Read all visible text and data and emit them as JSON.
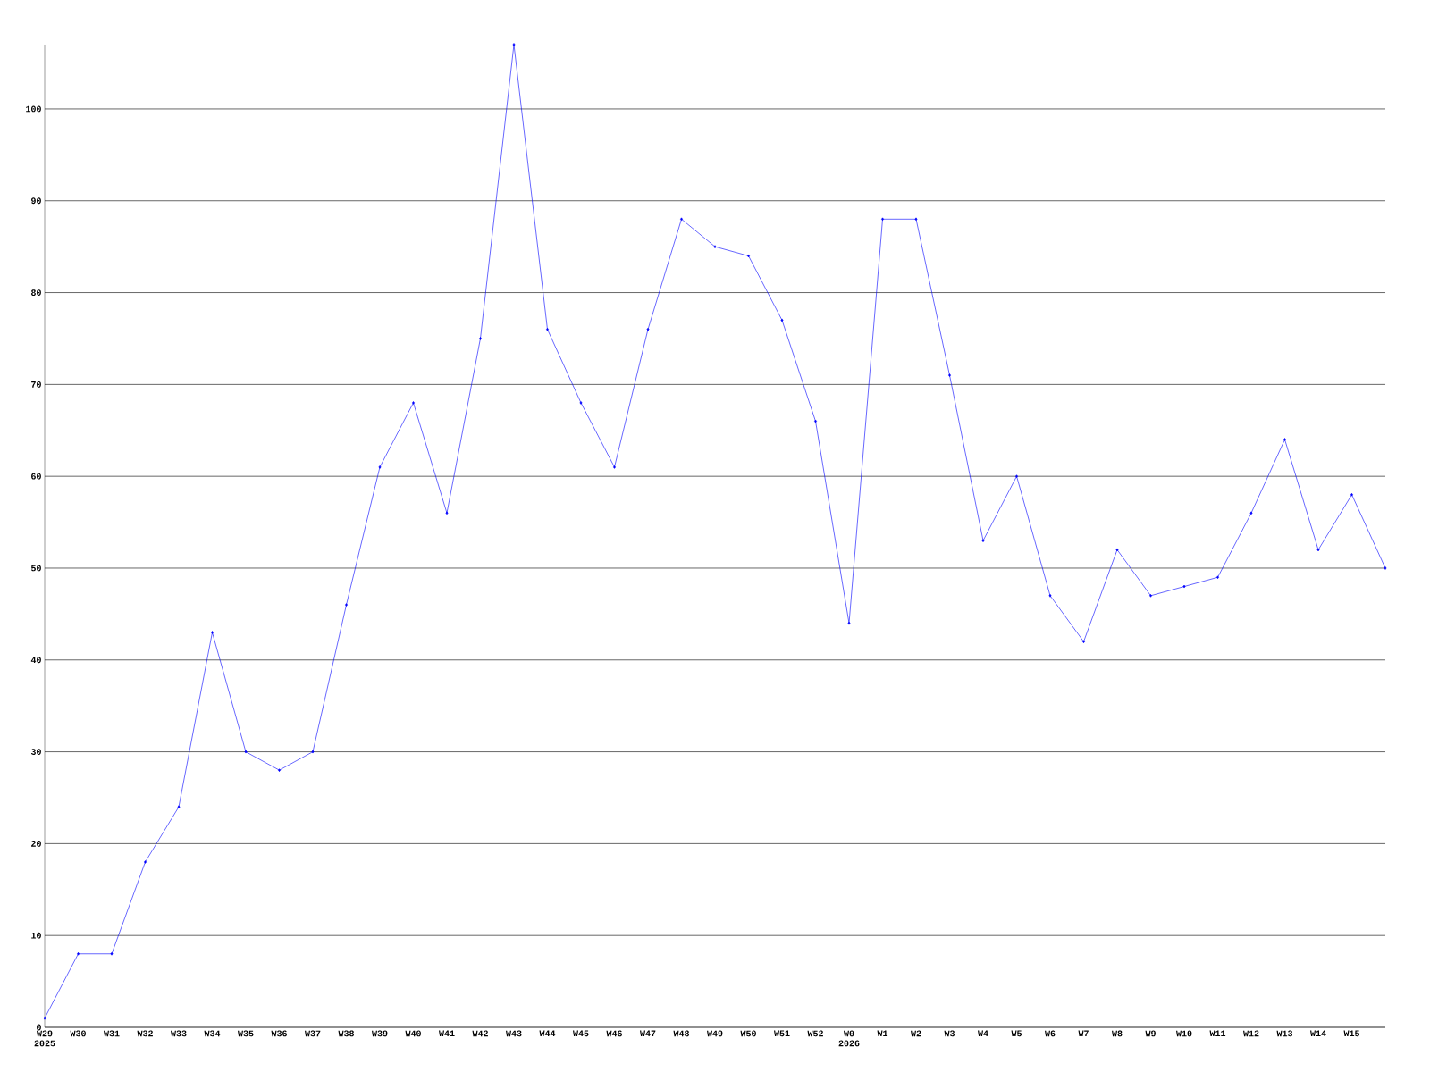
{
  "chart_data": {
    "type": "line",
    "categories": [
      "W29 2025",
      "W30",
      "W31",
      "W32",
      "W33",
      "W34",
      "W35",
      "W36",
      "W37",
      "W38",
      "W39",
      "W40",
      "W41",
      "W42",
      "W43",
      "W44",
      "W45",
      "W46",
      "W47",
      "W48",
      "W49",
      "W50",
      "W51",
      "W52",
      "W0 2026",
      "W1",
      "W2",
      "W3",
      "W4",
      "W5",
      "W6",
      "W7",
      "W8",
      "W9",
      "W10",
      "W11",
      "W12",
      "W13",
      "W14",
      "W15",
      null
    ],
    "series": [
      {
        "color": "#0000ff",
        "values": [
          1,
          8,
          8,
          18,
          24,
          43,
          30,
          28,
          30,
          46,
          61,
          68,
          56,
          75,
          107,
          76,
          68,
          61,
          76,
          88,
          85,
          84,
          77,
          66,
          44,
          88,
          88,
          71,
          53,
          60,
          47,
          42,
          52,
          47,
          48,
          49,
          56,
          64,
          52,
          58,
          50
        ]
      }
    ],
    "ylim": [
      0,
      107
    ],
    "yticks": [
      0,
      10,
      20,
      30,
      40,
      50,
      60,
      70,
      80,
      90,
      100
    ],
    "grid": "y",
    "marker": "diamond",
    "line_style": "solid"
  }
}
